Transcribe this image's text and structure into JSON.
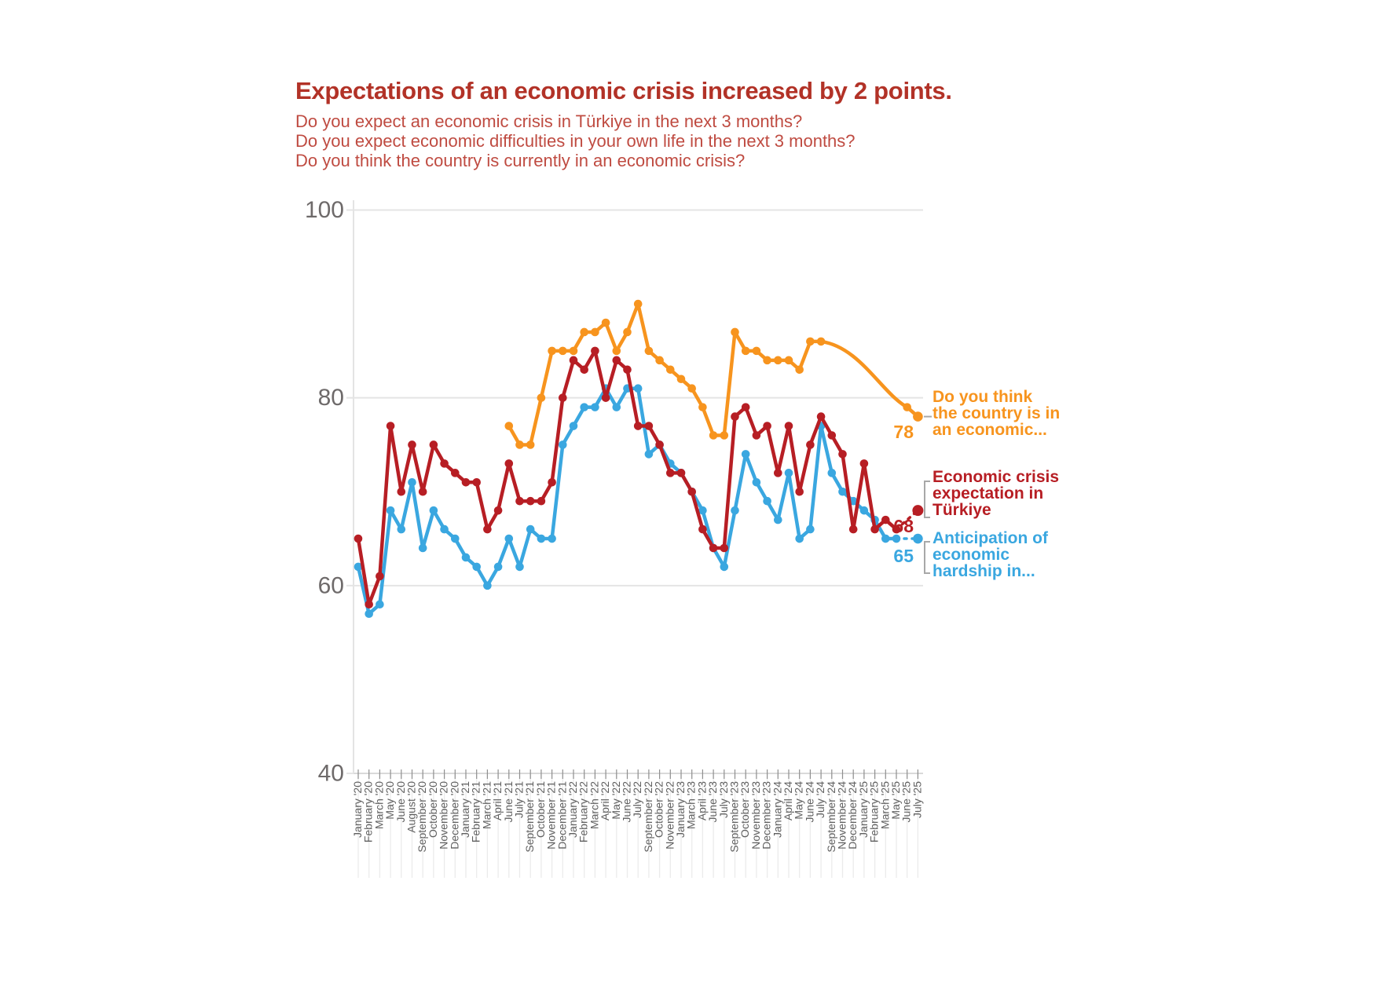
{
  "title": "Expectations of an economic crisis increased by 2 points.",
  "subtitle_lines": [
    "Do you expect an economic crisis in Türkiye in the next 3 months?",
    "Do you expect economic difficulties in your own life in the next 3 months?",
    "Do you think the country is currently in an economic crisis?"
  ],
  "colors": {
    "background": "#ffffff",
    "title": "#b23227",
    "subtitle": "#bf4b41",
    "axis_text": "#6e6a6a",
    "tick_text": "#5f5f5f",
    "grid": "#e4e4e4",
    "baseline": "#d9d9d9",
    "label_guides": "#ebebeb",
    "annotation": "#a8a8a8",
    "series_country_crisis": "#f7941e",
    "series_crisis_expectation": "#b71e24",
    "series_hardship": "#3aa7e0"
  },
  "chart_data": {
    "type": "line",
    "title": "Expectations of an economic crisis increased by 2 points.",
    "xlabel": "",
    "ylabel": "",
    "ylim": [
      40,
      100
    ],
    "yticks": [
      40,
      60,
      80,
      100
    ],
    "grid": "horizontal",
    "legend_position": "right",
    "categories": [
      "January '20",
      "February '20",
      "March '20",
      "May '20",
      "June '20",
      "August '20",
      "September '20",
      "October '20",
      "November '20",
      "December '20",
      "January '21",
      "February '21",
      "March '21",
      "April '21",
      "June '21",
      "July '21",
      "September '21",
      "October '21",
      "November '21",
      "December '21",
      "January '22",
      "February '22",
      "March '22",
      "April '22",
      "May '22",
      "June '22",
      "July '22",
      "September '22",
      "October '22",
      "November '22",
      "January '23",
      "March '23",
      "April '23",
      "June '23",
      "July '23",
      "September '23",
      "October '23",
      "November '23",
      "December '23",
      "January '24",
      "April '24",
      "May '24",
      "June '24",
      "July '24",
      "September '24",
      "November '24",
      "December '24",
      "January '25",
      "February '25",
      "March '25",
      "May '25",
      "June '25",
      "July '25"
    ],
    "series": [
      {
        "id": "country-crisis",
        "name": "Do you think the country is in an economic…",
        "label_lines": [
          "Do you think",
          "the country is in",
          "an economic..."
        ],
        "color": "#f7941e",
        "end_value": 78,
        "bridge_style": "curve",
        "values": [
          null,
          null,
          null,
          null,
          null,
          null,
          null,
          null,
          null,
          null,
          null,
          null,
          null,
          null,
          77,
          75,
          75,
          80,
          85,
          85,
          85,
          87,
          87,
          88,
          85,
          87,
          90,
          85,
          84,
          83,
          82,
          81,
          79,
          76,
          76,
          87,
          85,
          85,
          84,
          84,
          84,
          83,
          86,
          86,
          null,
          null,
          null,
          null,
          null,
          null,
          null,
          79,
          78
        ]
      },
      {
        "id": "crisis-expectation",
        "name": "Economic crisis expectation in Türkiye",
        "label_lines": [
          "Economic crisis",
          "expectation in",
          "Türkiye"
        ],
        "color": "#b71e24",
        "end_value": 68,
        "bridge_style": "dashed",
        "values": [
          65,
          58,
          61,
          77,
          70,
          75,
          70,
          75,
          73,
          72,
          71,
          71,
          66,
          68,
          73,
          69,
          69,
          69,
          71,
          80,
          84,
          83,
          85,
          80,
          84,
          83,
          77,
          77,
          75,
          72,
          72,
          70,
          66,
          64,
          64,
          78,
          79,
          76,
          77,
          72,
          77,
          70,
          75,
          78,
          76,
          74,
          66,
          73,
          66,
          67,
          66,
          null,
          68
        ]
      },
      {
        "id": "hardship",
        "name": "Anticipation of economic hardship in…",
        "label_lines": [
          "Anticipation of",
          "economic",
          "hardship in..."
        ],
        "color": "#3aa7e0",
        "end_value": 65,
        "bridge_style": "dashed",
        "values": [
          62,
          57,
          58,
          68,
          66,
          71,
          64,
          68,
          66,
          65,
          63,
          62,
          60,
          62,
          65,
          62,
          66,
          65,
          65,
          75,
          77,
          79,
          79,
          81,
          79,
          81,
          81,
          74,
          75,
          73,
          72,
          70,
          68,
          64,
          62,
          68,
          74,
          71,
          69,
          67,
          72,
          65,
          66,
          77,
          72,
          70,
          69,
          68,
          67,
          65,
          65,
          null,
          65
        ]
      }
    ]
  }
}
